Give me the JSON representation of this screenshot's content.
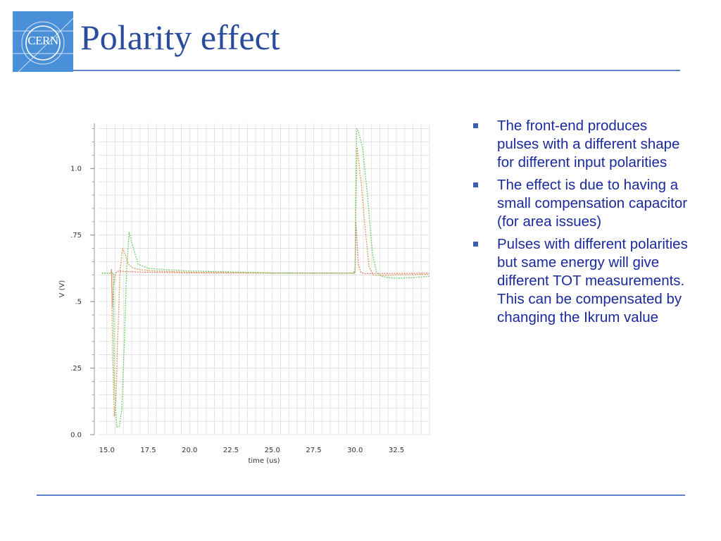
{
  "slide": {
    "logo_text": "CERN",
    "title": "Polarity effect"
  },
  "bullets": [
    "The front-end produces pulses with a different shape for different input polarities",
    "The effect is due to having a small compensation capacitor (for area issues)",
    "Pulses with different polarities but same energy will give different TOT measurements. This can be compensated by changing the Ikrum value"
  ],
  "chart_data": {
    "type": "line",
    "xlabel": "time (us)",
    "ylabel": "V (V)",
    "xlim": [
      14.5,
      34.5
    ],
    "ylim": [
      0.0,
      1.17
    ],
    "x_ticks": [
      15.0,
      17.5,
      20.0,
      22.5,
      25.0,
      27.5,
      30.0,
      32.5
    ],
    "x_tick_labels": [
      "15.0",
      "17.5",
      "20.0",
      "22.5",
      "25.0",
      "27.5",
      "30.0",
      "32.5"
    ],
    "y_ticks": [
      0.0,
      0.25,
      0.5,
      0.75,
      1.0
    ],
    "y_tick_labels": [
      "0.0",
      ".25",
      ".5",
      ".75",
      "1.0"
    ],
    "grid": true,
    "colors": {
      "red": "#e87b6d",
      "orange": "#d8a05a",
      "green": "#6fcf6f",
      "grid": "#dedede"
    },
    "series": [
      {
        "color": "#e87b6d",
        "x": [
          14.7,
          15.25,
          15.28,
          15.33,
          15.4,
          15.5,
          15.6,
          15.75,
          16.0,
          17.0,
          20.0,
          25.0,
          29.9,
          30.0,
          30.05,
          30.12,
          30.2,
          30.35,
          30.6,
          31.5,
          34.5
        ],
        "y": [
          0.607,
          0.607,
          0.62,
          0.48,
          0.55,
          0.6,
          0.612,
          0.615,
          0.613,
          0.611,
          0.608,
          0.607,
          0.607,
          0.62,
          0.8,
          0.72,
          0.64,
          0.61,
          0.605,
          0.605,
          0.607
        ]
      },
      {
        "color": "#d8a05a",
        "x": [
          14.7,
          15.3,
          15.35,
          15.45,
          15.55,
          15.65,
          15.8,
          15.95,
          16.1,
          16.3,
          16.6,
          17.0,
          18.0,
          20.0,
          25.0,
          30.0,
          30.05,
          30.12,
          30.2,
          30.4,
          30.6,
          30.85,
          31.1,
          31.5,
          32.5,
          34.5
        ],
        "y": [
          0.607,
          0.607,
          0.3,
          0.07,
          0.13,
          0.35,
          0.62,
          0.7,
          0.68,
          0.64,
          0.625,
          0.62,
          0.615,
          0.61,
          0.607,
          0.607,
          0.85,
          1.08,
          1.04,
          0.93,
          0.78,
          0.63,
          0.6,
          0.598,
          0.6,
          0.603
        ]
      },
      {
        "color": "#6fcf6f",
        "x": [
          14.7,
          15.4,
          15.45,
          15.6,
          15.75,
          15.9,
          16.05,
          16.2,
          16.35,
          16.6,
          16.9,
          17.5,
          18.5,
          20.0,
          25.0,
          30.0,
          30.05,
          30.1,
          30.2,
          30.45,
          30.75,
          31.05,
          31.3,
          31.6,
          32.0,
          32.5,
          33.5,
          34.5
        ],
        "y": [
          0.607,
          0.607,
          0.2,
          0.03,
          0.03,
          0.09,
          0.33,
          0.63,
          0.76,
          0.7,
          0.64,
          0.625,
          0.62,
          0.615,
          0.608,
          0.607,
          0.9,
          1.15,
          1.14,
          1.08,
          0.9,
          0.68,
          0.61,
          0.595,
          0.59,
          0.588,
          0.59,
          0.595
        ]
      }
    ]
  }
}
